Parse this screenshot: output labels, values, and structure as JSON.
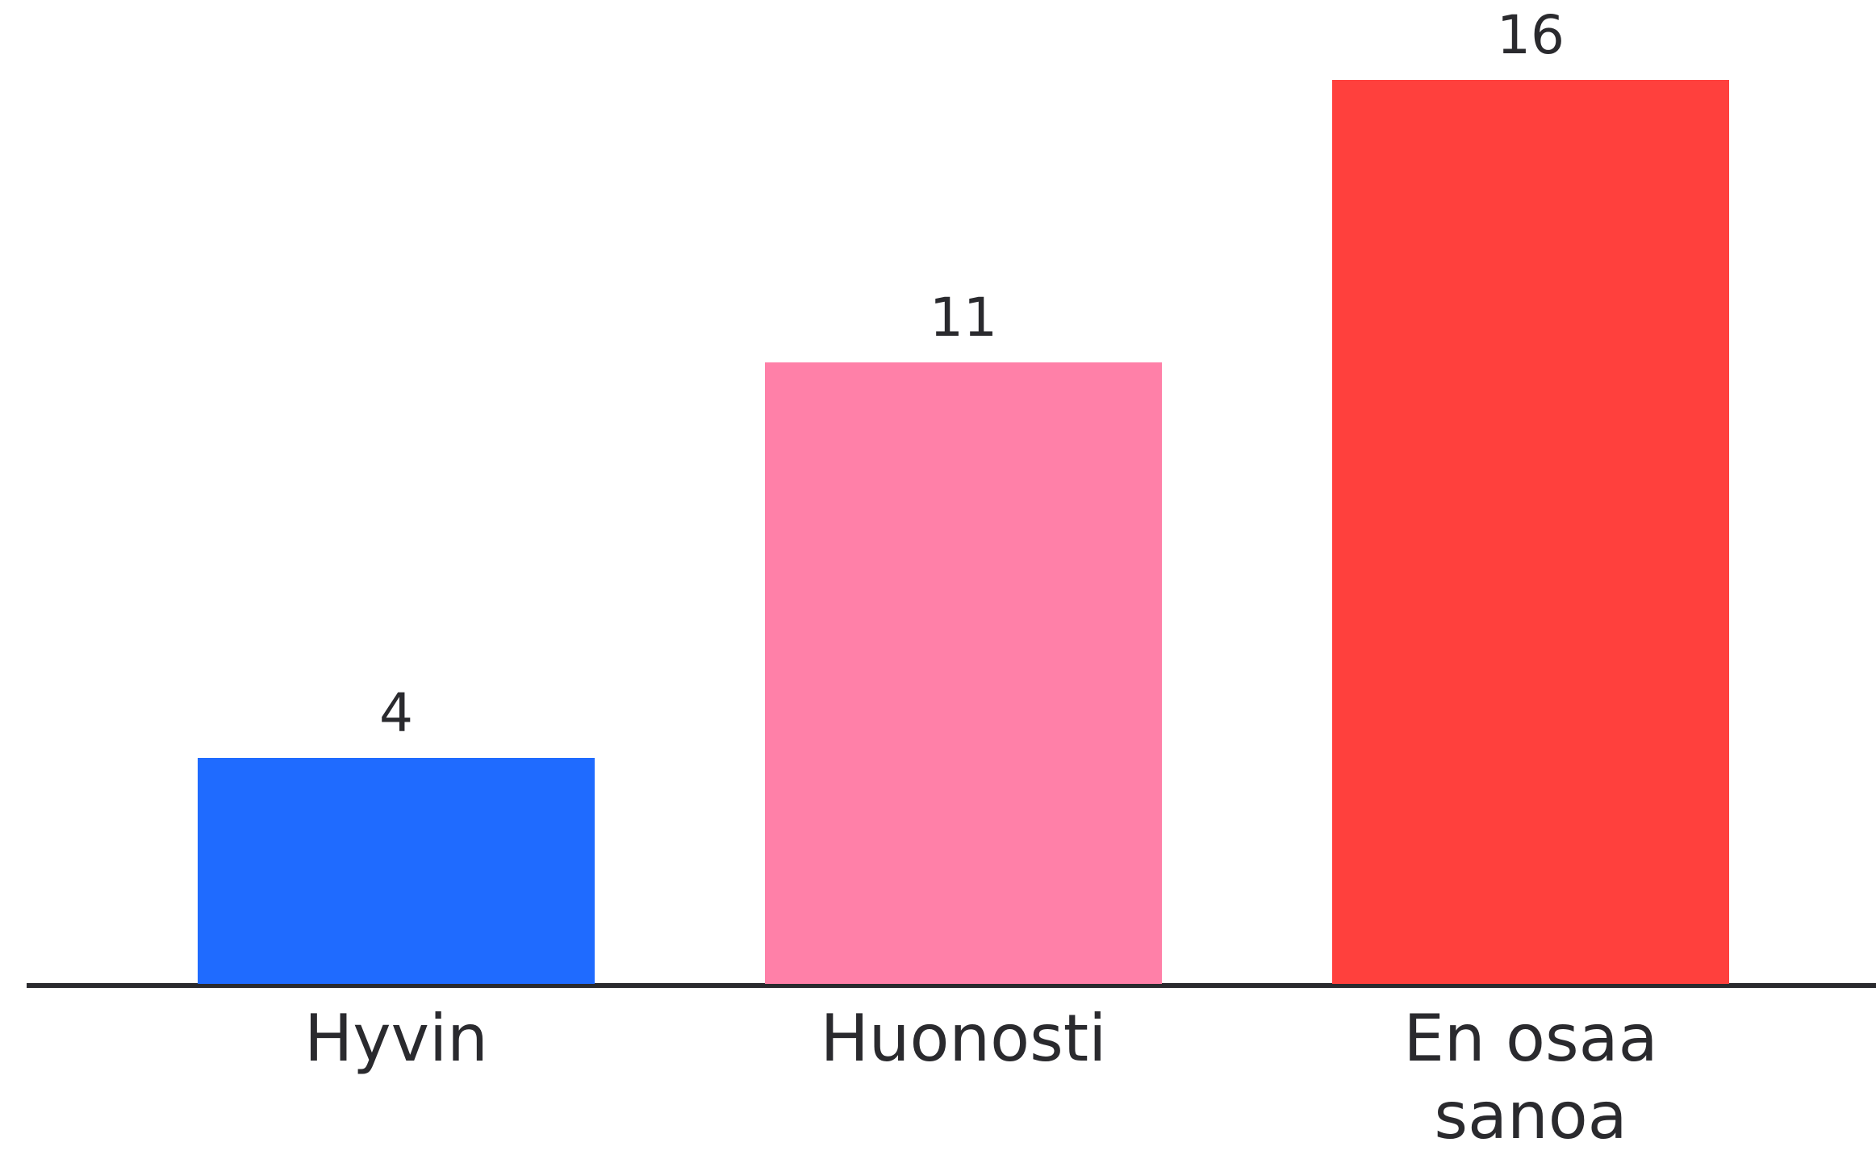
{
  "chart_data": {
    "type": "bar",
    "categories": [
      "Hyvin",
      "Huonosti",
      "En osaa sanoa"
    ],
    "values": [
      4,
      11,
      16
    ],
    "colors": [
      "#1f6bff",
      "#ff80a8",
      "#ff403d"
    ]
  }
}
